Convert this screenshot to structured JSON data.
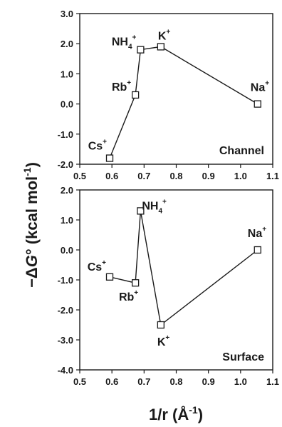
{
  "chart_data": [
    {
      "type": "line",
      "panel_label": "Channel",
      "x": [
        0.593,
        0.673,
        0.689,
        0.752,
        1.053
      ],
      "y": [
        -1.8,
        0.3,
        1.8,
        1.9,
        0.0
      ],
      "point_labels": [
        "Cs+",
        "Rb+",
        "NH4+",
        "K+",
        "Na+"
      ],
      "xlim": [
        0.5,
        1.1
      ],
      "ylim": [
        -2.0,
        3.0
      ],
      "xticks": [
        "0.5",
        "0.6",
        "0.7",
        "0.8",
        "0.9",
        "1.0",
        "1.1"
      ],
      "yticks": [
        "-2.0",
        "-1.0",
        "0.0",
        "1.0",
        "2.0",
        "3.0"
      ],
      "marker": "open-square",
      "grid": false
    },
    {
      "type": "line",
      "panel_label": "Surface",
      "x": [
        0.593,
        0.673,
        0.689,
        0.752,
        1.053
      ],
      "y": [
        -0.9,
        -1.1,
        1.3,
        -2.5,
        0.0
      ],
      "point_labels": [
        "Cs+",
        "Rb+",
        "NH4+",
        "K+",
        "Na+"
      ],
      "xlim": [
        0.5,
        1.1
      ],
      "ylim": [
        -4.0,
        2.0
      ],
      "xticks": [
        "0.5",
        "0.6",
        "0.7",
        "0.8",
        "0.9",
        "1.0",
        "1.1"
      ],
      "yticks": [
        "-4.0",
        "-3.0",
        "-2.0",
        "-1.0",
        "0.0",
        "1.0",
        "2.0"
      ],
      "marker": "open-square",
      "grid": false
    }
  ],
  "axis_titles": {
    "y_prefix": "−Δ",
    "y_symbol": "G",
    "y_suffix": "° (kcal mol",
    "y_exponent": "-1",
    "y_close": ")",
    "x_main": "1/r (Å",
    "x_exponent": "-1",
    "x_close": ")"
  },
  "colors": {
    "ink": "#1a1a1a",
    "marker_fill": "#ffffff"
  }
}
